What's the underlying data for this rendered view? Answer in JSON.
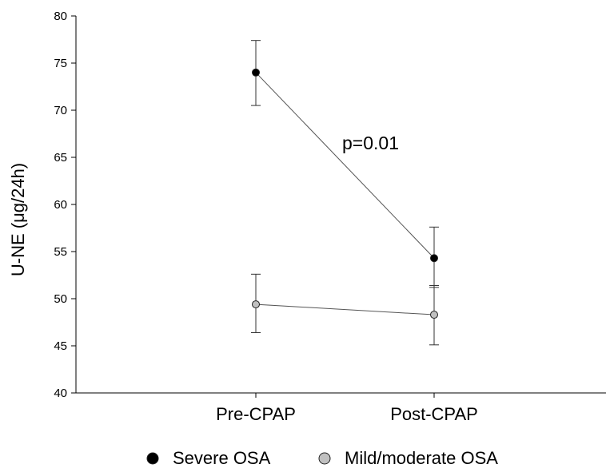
{
  "chart_data": {
    "type": "line",
    "categories": [
      "Pre-CPAP",
      "Post-CPAP"
    ],
    "ylabel": "U-NE (μg/24h)",
    "ylim": [
      40,
      80
    ],
    "yticks": [
      40,
      45,
      50,
      55,
      60,
      65,
      70,
      75,
      80
    ],
    "grid": false,
    "legend_position": "bottom",
    "annotation": "p=0.01",
    "series": [
      {
        "name": "Severe OSA",
        "color": "#000000",
        "values": [
          74.0,
          54.3
        ],
        "error_low": [
          70.5,
          51.2
        ],
        "error_high": [
          77.4,
          57.6
        ]
      },
      {
        "name": "Mild/moderate OSA",
        "color": "#c0c0c0",
        "values": [
          49.4,
          48.3
        ],
        "error_low": [
          46.4,
          45.1
        ],
        "error_high": [
          52.6,
          51.4
        ]
      }
    ]
  }
}
